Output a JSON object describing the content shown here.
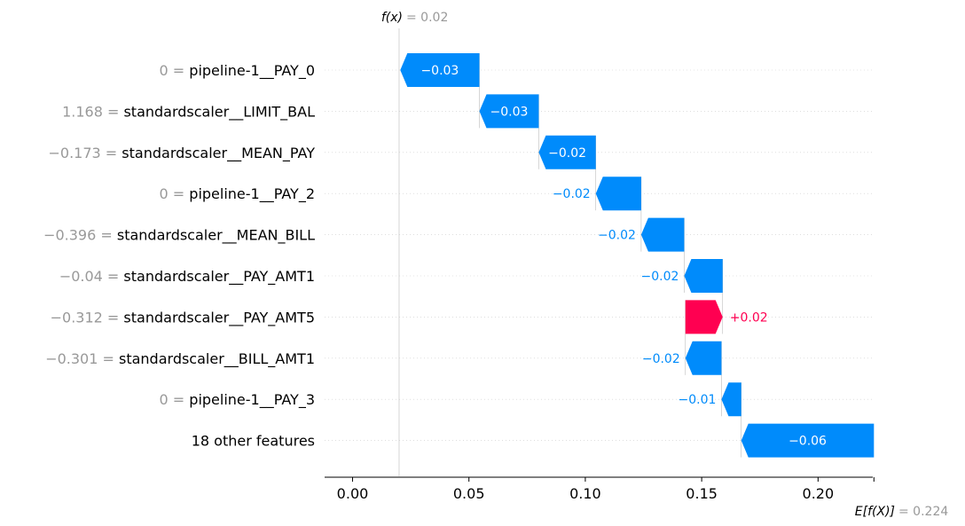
{
  "chart_data": {
    "type": "waterfall",
    "fx": {
      "label": "f(x)",
      "value_text": "= 0.02",
      "value": 0.02
    },
    "base": {
      "label": "E[f(X)]",
      "value_text": "= 0.224",
      "value": 0.224
    },
    "xlim": [
      -0.012,
      0.2235
    ],
    "x_ticks": [
      {
        "value": 0.0,
        "label": "0.00"
      },
      {
        "value": 0.05,
        "label": "0.05"
      },
      {
        "value": 0.1,
        "label": "0.10"
      },
      {
        "value": 0.15,
        "label": "0.15"
      },
      {
        "value": 0.2,
        "label": "0.20"
      }
    ],
    "colors": {
      "negative": "#008bfb",
      "positive": "#ff0051",
      "grey_text": "#999999"
    },
    "features": [
      {
        "value_label": "0 =",
        "name": "pipeline-1__PAY_0",
        "start": 0.0545,
        "end": 0.0205,
        "label": "−0.03"
      },
      {
        "value_label": "1.168 =",
        "name": "standardscaler__LIMIT_BAL",
        "start": 0.08,
        "end": 0.0545,
        "label": "−0.03"
      },
      {
        "value_label": "−0.173 =",
        "name": "standardscaler__MEAN_PAY",
        "start": 0.1045,
        "end": 0.08,
        "label": "−0.02"
      },
      {
        "value_label": "0 =",
        "name": "pipeline-1__PAY_2",
        "start": 0.124,
        "end": 0.1045,
        "label": "−0.02"
      },
      {
        "value_label": "−0.396 =",
        "name": "standardscaler__MEAN_BILL",
        "start": 0.1425,
        "end": 0.124,
        "label": "−0.02"
      },
      {
        "value_label": "−0.04 =",
        "name": "standardscaler__PAY_AMT1",
        "start": 0.159,
        "end": 0.1425,
        "label": "−0.02"
      },
      {
        "value_label": "−0.312 =",
        "name": "standardscaler__PAY_AMT5",
        "start": 0.143,
        "end": 0.159,
        "label": "+0.02"
      },
      {
        "value_label": "−0.301 =",
        "name": "standardscaler__BILL_AMT1",
        "start": 0.1585,
        "end": 0.143,
        "label": "−0.02"
      },
      {
        "value_label": "0 =",
        "name": "pipeline-1__PAY_3",
        "start": 0.167,
        "end": 0.1585,
        "label": "−0.01"
      },
      {
        "value_label": "",
        "name": "18 other features",
        "start": 0.224,
        "end": 0.167,
        "label": "−0.06"
      }
    ]
  }
}
